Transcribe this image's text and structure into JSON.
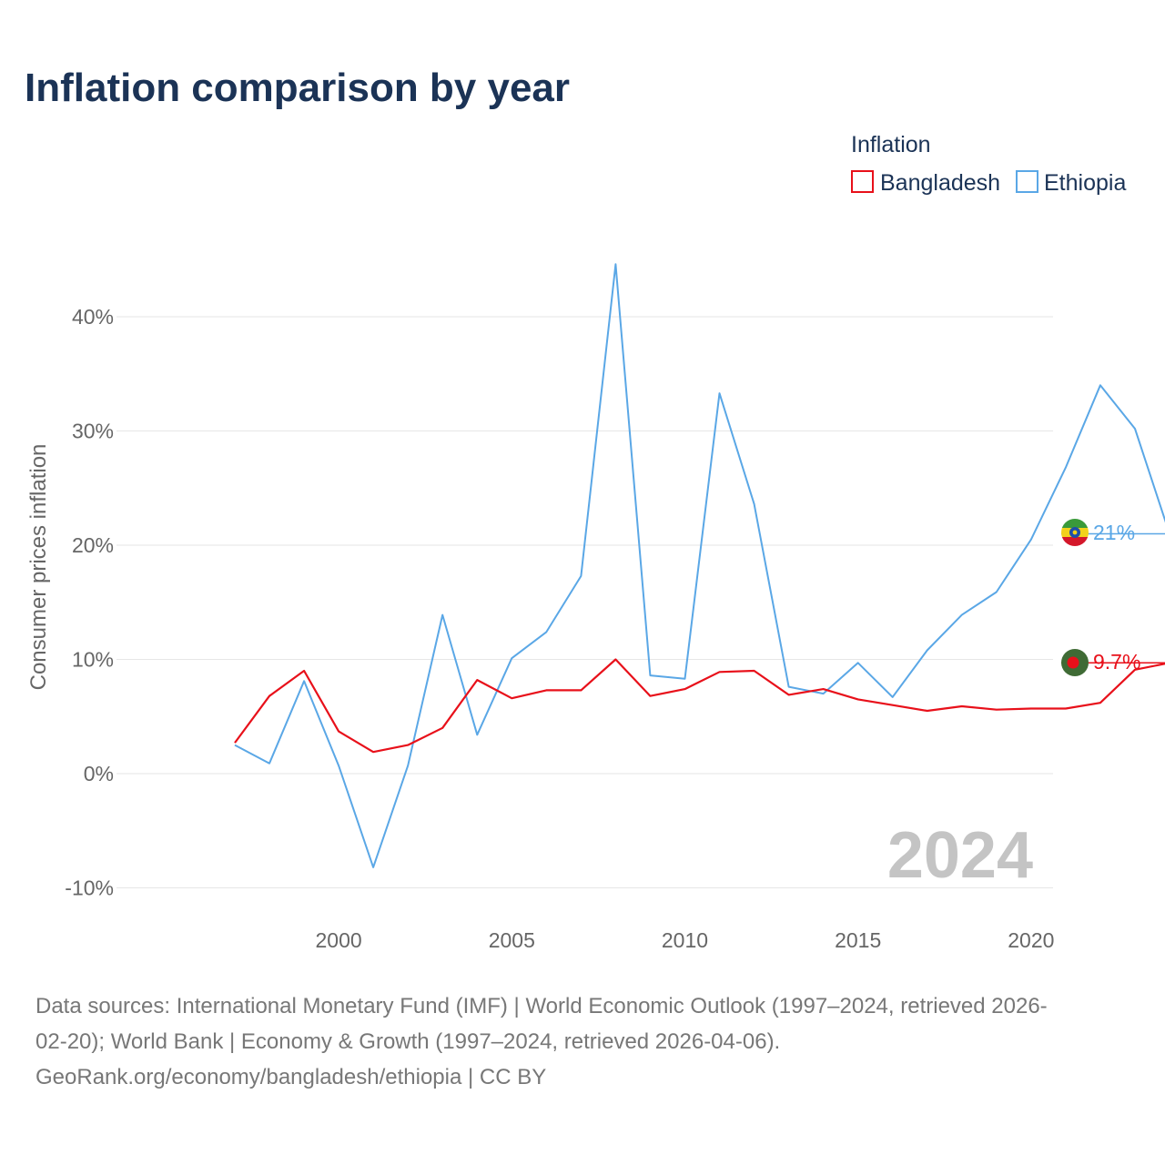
{
  "title": "Inflation comparison by year",
  "legend": {
    "title": "Inflation",
    "items": [
      {
        "label": "Bangladesh",
        "color": "#e8101a"
      },
      {
        "label": "Ethiopia",
        "color": "#5aa7e6"
      }
    ]
  },
  "year_display": "2024",
  "end_labels": {
    "bangladesh": "9.7%",
    "ethiopia": "21%"
  },
  "source_lines": [
    "Data sources: International Monetary Fund (IMF) | World Economic Outlook (1997–2024, retrieved 2026-",
    "02-20); World Bank | Economy & Growth (1997–2024, retrieved 2026-04-06).",
    "GeoRank.org/economy/bangladesh/ethiopia | CC BY"
  ],
  "chart_data": {
    "type": "line",
    "title": "Inflation comparison by year",
    "xlabel": "",
    "ylabel": "Consumer prices inflation",
    "x": [
      1997,
      1998,
      1999,
      2000,
      2001,
      2002,
      2003,
      2004,
      2005,
      2006,
      2007,
      2008,
      2009,
      2010,
      2011,
      2012,
      2013,
      2014,
      2015,
      2016,
      2017,
      2018,
      2019,
      2020,
      2021,
      2022,
      2023,
      2024
    ],
    "xlim": [
      1997,
      2024
    ],
    "ylim": [
      -10,
      45
    ],
    "x_ticks": [
      2000,
      2005,
      2010,
      2015,
      2020
    ],
    "y_ticks": [
      -10,
      0,
      10,
      20,
      30,
      40
    ],
    "y_tick_labels": [
      "-10%",
      "0%",
      "10%",
      "20%",
      "30%",
      "40%"
    ],
    "grid": true,
    "legend_position": "top-right",
    "series": [
      {
        "name": "Bangladesh",
        "color": "#e8101a",
        "values": [
          2.7,
          6.8,
          9.0,
          3.7,
          1.9,
          2.5,
          4.0,
          8.2,
          6.6,
          7.3,
          7.3,
          10.0,
          6.8,
          7.4,
          8.9,
          9.0,
          6.9,
          7.4,
          6.5,
          6.0,
          5.5,
          5.9,
          5.6,
          5.7,
          5.7,
          6.2,
          9.1,
          9.7
        ]
      },
      {
        "name": "Ethiopia",
        "color": "#5aa7e6",
        "values": [
          2.5,
          0.9,
          8.1,
          0.7,
          -8.2,
          0.7,
          13.9,
          3.4,
          10.1,
          12.4,
          17.3,
          44.6,
          8.6,
          8.3,
          33.3,
          23.6,
          7.6,
          7.0,
          9.7,
          6.7,
          10.8,
          13.9,
          15.9,
          20.5,
          26.8,
          34.0,
          30.2,
          21.0
        ]
      }
    ]
  }
}
